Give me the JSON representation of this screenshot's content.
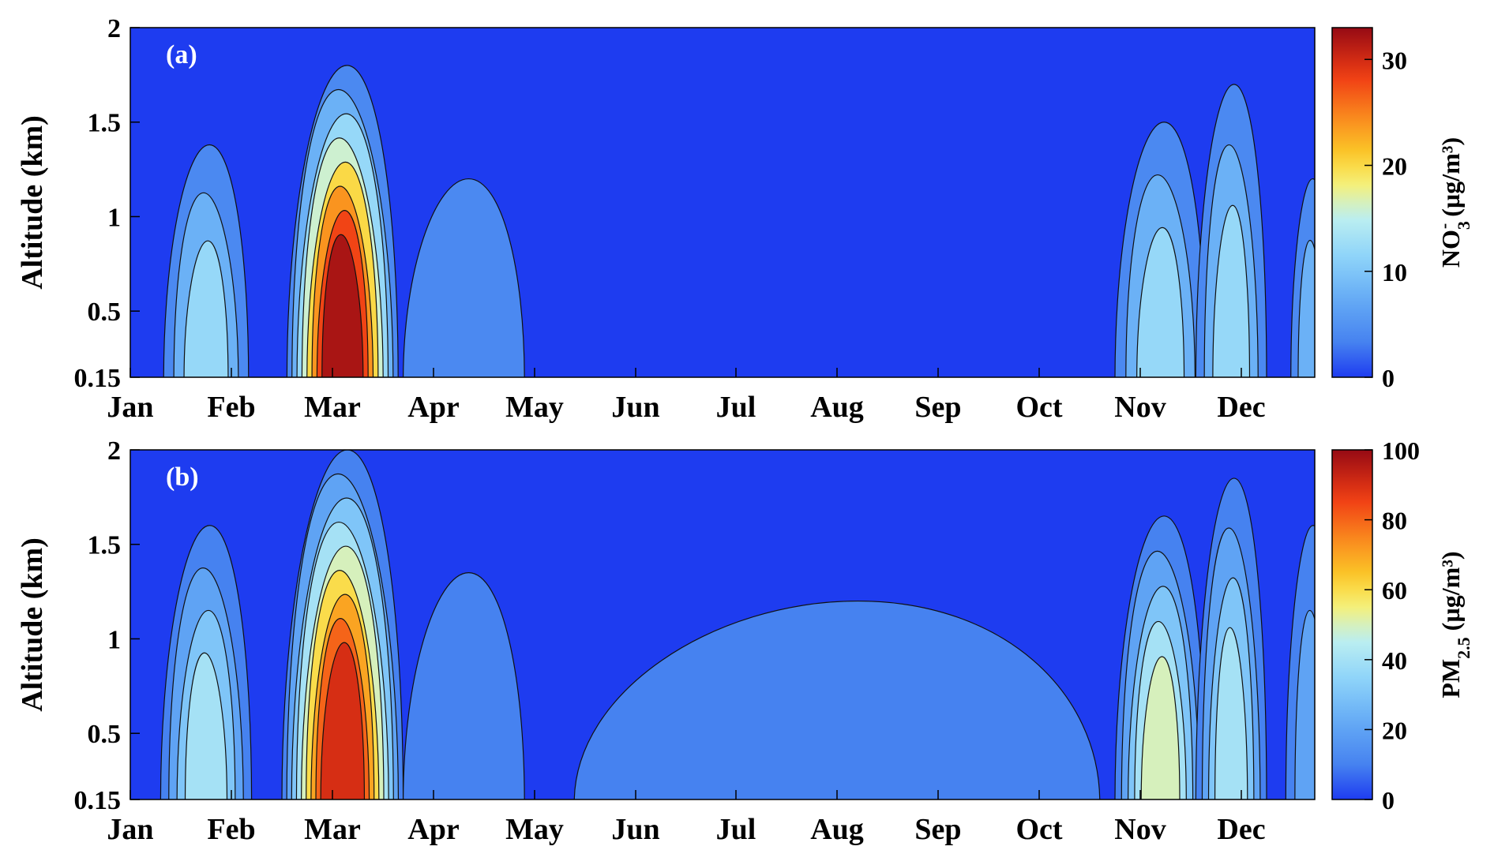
{
  "chart_data": [
    {
      "type": "heatmap",
      "panel_label": "(a)",
      "xlabel": "",
      "ylabel": "Altitude (km)",
      "x_ticks": [
        "Jan",
        "Feb",
        "Mar",
        "Apr",
        "May",
        "Jun",
        "Jul",
        "Aug",
        "Sep",
        "Oct",
        "Nov",
        "Dec"
      ],
      "y_ticks": [
        "0.15",
        "0.5",
        "1",
        "1.5",
        "2"
      ],
      "y_tick_values": [
        0.15,
        0.5,
        1,
        1.5,
        2
      ],
      "ylim": [
        0.15,
        2
      ],
      "colorbar": {
        "label_main": "NO",
        "label_sub": "3",
        "label_sup": "-",
        "label_unit": " (µg/m³)",
        "ticks": [
          "0",
          "10",
          "20",
          "30"
        ],
        "tick_values": [
          0,
          10,
          20,
          30
        ],
        "range": [
          0,
          33
        ]
      },
      "levels": [
        0,
        4,
        8,
        12,
        16,
        20,
        24,
        28,
        32
      ],
      "features": [
        {
          "name": "jan-feb-plume",
          "month_center": 0.75,
          "width": 0.42,
          "alt_top": 1.38,
          "peak_value": 14
        },
        {
          "name": "mar-pollution-peak",
          "month_center": 2.1,
          "width": 0.55,
          "alt_top": 1.8,
          "peak_value": 33
        },
        {
          "name": "apr-tail",
          "month_center": 3.3,
          "width": 0.6,
          "alt_top": 1.2,
          "peak_value": 6
        },
        {
          "name": "nov-plume",
          "month_center": 10.2,
          "width": 0.45,
          "alt_top": 1.5,
          "peak_value": 15
        },
        {
          "name": "late-nov-plume",
          "month_center": 10.9,
          "width": 0.35,
          "alt_top": 1.7,
          "peak_value": 15
        },
        {
          "name": "dec-edge",
          "month_center": 11.95,
          "width": 0.2,
          "alt_top": 1.2,
          "peak_value": 8
        }
      ]
    },
    {
      "type": "heatmap",
      "panel_label": "(b)",
      "xlabel": "",
      "ylabel": "Altitude (km)",
      "x_ticks": [
        "Jan",
        "Feb",
        "Mar",
        "Apr",
        "May",
        "Jun",
        "Jul",
        "Aug",
        "Sep",
        "Oct",
        "Nov",
        "Dec"
      ],
      "y_ticks": [
        "0.15",
        "0.5",
        "1",
        "1.5",
        "2"
      ],
      "y_tick_values": [
        0.15,
        0.5,
        1,
        1.5,
        2
      ],
      "ylim": [
        0.15,
        2
      ],
      "colorbar": {
        "label_main": "PM",
        "label_sub": "2.5",
        "label_sup": "",
        "label_unit": " (µg/m³)",
        "ticks": [
          "0",
          "20",
          "40",
          "60",
          "80",
          "100"
        ],
        "tick_values": [
          0,
          20,
          40,
          60,
          80,
          100
        ],
        "range": [
          0,
          100
        ]
      },
      "levels": [
        0,
        10,
        20,
        30,
        40,
        50,
        60,
        70,
        80,
        90
      ],
      "features": [
        {
          "name": "jan-feb-plume",
          "month_center": 0.75,
          "width": 0.45,
          "alt_top": 1.6,
          "peak_value": 45
        },
        {
          "name": "mar-pollution-peak",
          "month_center": 2.1,
          "width": 0.6,
          "alt_top": 2.0,
          "peak_value": 100
        },
        {
          "name": "apr-tail",
          "month_center": 3.3,
          "width": 0.6,
          "alt_top": 1.35,
          "peak_value": 18
        },
        {
          "name": "summer-layer",
          "month_center": 7.0,
          "width": 2.6,
          "alt_top": 1.2,
          "peak_value": 15
        },
        {
          "name": "nov-plume",
          "month_center": 10.2,
          "width": 0.45,
          "alt_top": 1.65,
          "peak_value": 50
        },
        {
          "name": "late-nov-plume",
          "month_center": 10.9,
          "width": 0.35,
          "alt_top": 1.85,
          "peak_value": 45
        },
        {
          "name": "dec-edge",
          "month_center": 11.95,
          "width": 0.25,
          "alt_top": 1.6,
          "peak_value": 20
        }
      ]
    }
  ]
}
